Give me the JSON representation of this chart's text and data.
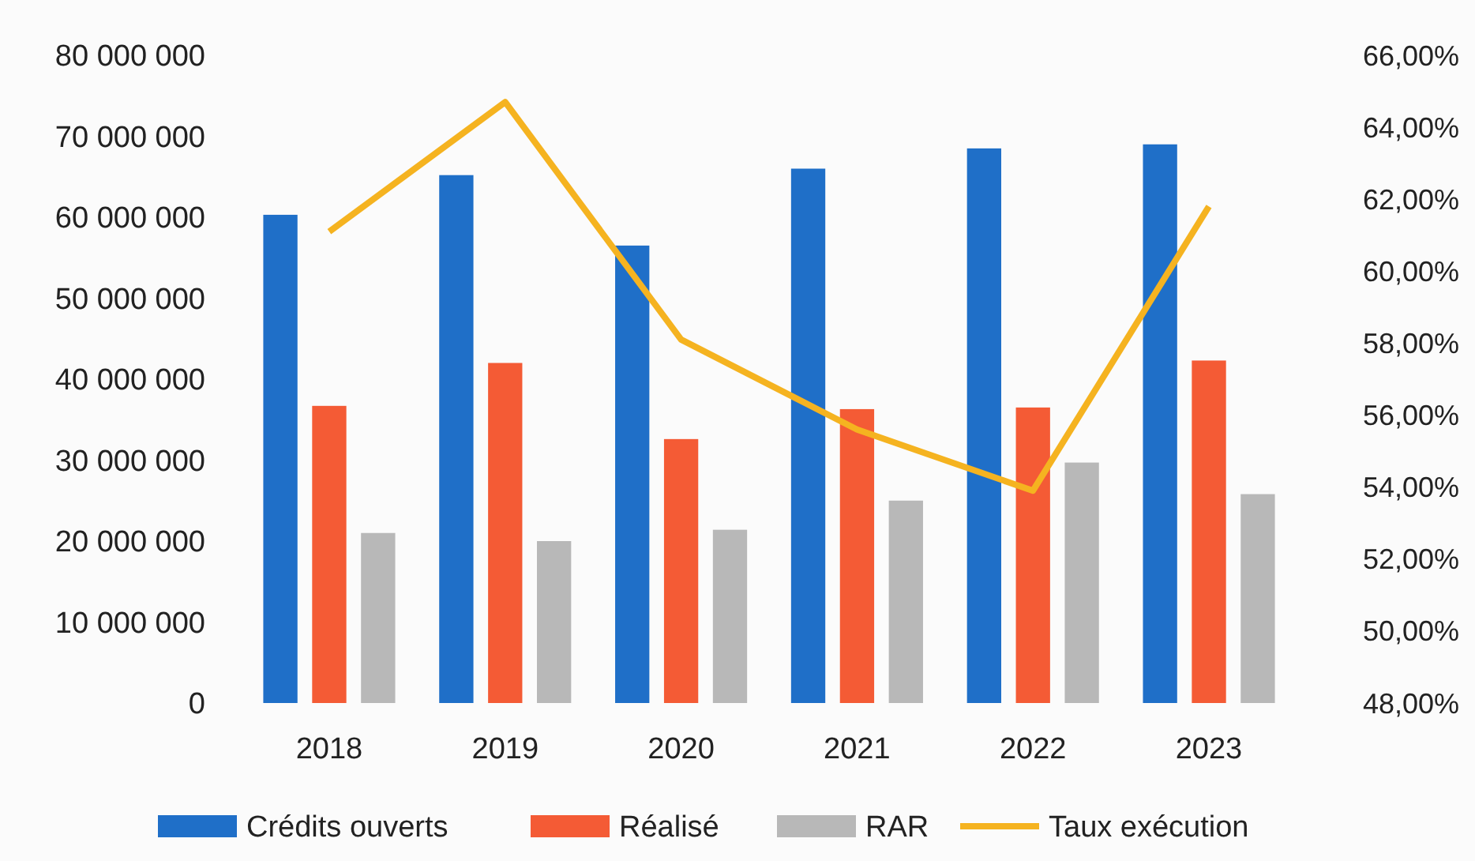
{
  "chart_data": {
    "type": "bar",
    "categories": [
      "2018",
      "2019",
      "2020",
      "2021",
      "2022",
      "2023"
    ],
    "series": [
      {
        "name": "Crédits ouverts",
        "color": "#1f6fc8",
        "values": [
          60300000,
          65200000,
          56500000,
          66000000,
          68500000,
          69000000
        ]
      },
      {
        "name": "Réalisé",
        "color": "#f45b35",
        "values": [
          36700000,
          42000000,
          32600000,
          36300000,
          36500000,
          42300000
        ]
      },
      {
        "name": "RAR",
        "color": "#b8b8b8",
        "values": [
          21000000,
          20000000,
          21400000,
          25000000,
          29700000,
          25800000
        ]
      },
      {
        "name": "Taux exécution",
        "type": "line",
        "axis": "y2",
        "color": "#f5b320",
        "values": [
          61.1,
          64.7,
          58.1,
          55.6,
          53.9,
          61.8
        ]
      }
    ],
    "ylim": [
      0,
      80000000
    ],
    "yticks": [
      {
        "value": 0,
        "label": "0"
      },
      {
        "value": 10000000,
        "label": "10 000 000"
      },
      {
        "value": 20000000,
        "label": "20 000 000"
      },
      {
        "value": 30000000,
        "label": "30 000 000"
      },
      {
        "value": 40000000,
        "label": "40 000 000"
      },
      {
        "value": 50000000,
        "label": "50 000 000"
      },
      {
        "value": 60000000,
        "label": "60 000 000"
      },
      {
        "value": 70000000,
        "label": "70 000 000"
      },
      {
        "value": 80000000,
        "label": "80 000 000"
      }
    ],
    "y2lim": [
      48,
      66
    ],
    "y2ticks": [
      {
        "value": 48,
        "label": "48,00%"
      },
      {
        "value": 50,
        "label": "50,00%"
      },
      {
        "value": 52,
        "label": "52,00%"
      },
      {
        "value": 54,
        "label": "54,00%"
      },
      {
        "value": 56,
        "label": "56,00%"
      },
      {
        "value": 58,
        "label": "58,00%"
      },
      {
        "value": 60,
        "label": "60,00%"
      },
      {
        "value": 62,
        "label": "62,00%"
      },
      {
        "value": 64,
        "label": "64,00%"
      },
      {
        "value": 66,
        "label": "66,00%"
      }
    ],
    "legend": "bottom"
  }
}
